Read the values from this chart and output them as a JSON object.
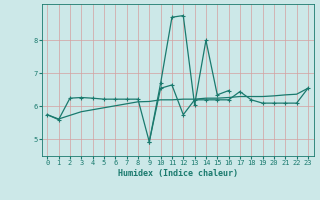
{
  "xlabel": "Humidex (Indice chaleur)",
  "bg_color": "#cce8e8",
  "grid_color": "#b8d8d8",
  "line_color": "#1a7a6e",
  "xlim": [
    -0.5,
    23.5
  ],
  "ylim": [
    4.5,
    9.1
  ],
  "yticks": [
    5,
    6,
    7,
    8
  ],
  "xticks": [
    0,
    1,
    2,
    3,
    4,
    5,
    6,
    7,
    8,
    9,
    10,
    11,
    12,
    13,
    14,
    15,
    16,
    17,
    18,
    19,
    20,
    21,
    22,
    23
  ],
  "series1_x": [
    0,
    1,
    2,
    3,
    4,
    5,
    6,
    7,
    8,
    9,
    10,
    11,
    12,
    13,
    14,
    15,
    16,
    17,
    18,
    19,
    20,
    21,
    22,
    23
  ],
  "series1_y": [
    5.75,
    5.6,
    6.25,
    6.27,
    6.25,
    6.22,
    6.22,
    6.22,
    6.22,
    4.93,
    6.55,
    6.65,
    5.75,
    6.2,
    6.2,
    6.2,
    6.2,
    6.45,
    6.2,
    6.1,
    6.1,
    6.1,
    6.1,
    6.55
  ],
  "series2_x": [
    0,
    1,
    2,
    3,
    4,
    5,
    6,
    7,
    8,
    9,
    10,
    11,
    12,
    13,
    14,
    15,
    16,
    17,
    18,
    19,
    20,
    21,
    22,
    23
  ],
  "series2_y": [
    5.75,
    5.62,
    5.73,
    5.84,
    5.9,
    5.96,
    6.02,
    6.08,
    6.14,
    6.15,
    6.2,
    6.2,
    6.22,
    6.22,
    6.25,
    6.25,
    6.27,
    6.3,
    6.3,
    6.3,
    6.32,
    6.35,
    6.37,
    6.55
  ],
  "series3_x": [
    9,
    10,
    11,
    12,
    13,
    14,
    15,
    16
  ],
  "series3_y": [
    4.93,
    6.7,
    8.7,
    8.75,
    6.05,
    8.0,
    6.35,
    6.48
  ]
}
